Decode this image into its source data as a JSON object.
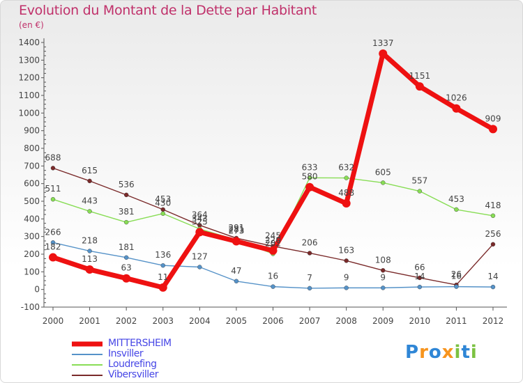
{
  "header": {
    "title": "Evolution du Montant de la Dette par Habitant",
    "subtitle": "(en €)"
  },
  "colors": {
    "axis": "#555555",
    "grid": "#cccccc",
    "label": "#444444"
  },
  "chart_data": {
    "type": "line",
    "title": "Evolution du Montant de la Dette par Habitant",
    "subtitle": "(en €)",
    "xlabel": "",
    "ylabel": "",
    "ylim": [
      -100,
      1400
    ],
    "yticks": [
      "-100",
      "0",
      "100",
      "200",
      "300",
      "400",
      "500",
      "600",
      "700",
      "800",
      "900",
      "1000",
      "1100",
      "1200",
      "1300",
      "1400"
    ],
    "x": [
      "2000",
      "2001",
      "2002",
      "2003",
      "2004",
      "2005",
      "2006",
      "2007",
      "2008",
      "2009",
      "2010",
      "2011",
      "2012"
    ],
    "grid": false,
    "legend": "bottom-left",
    "series": [
      {
        "name": "MITTERSHEIM",
        "color": "#ee1111",
        "width": 7,
        "marker": 6,
        "values": [
          182,
          113,
          63,
          11,
          325,
          273,
          220,
          580,
          488,
          1337,
          1151,
          1026,
          909
        ]
      },
      {
        "name": "Insviller",
        "color": "#5592c8",
        "width": 1.4,
        "marker": 3,
        "values": [
          266,
          218,
          181,
          136,
          127,
          47,
          16,
          7,
          9,
          9,
          14,
          16,
          14
        ]
      },
      {
        "name": "Loudrefing",
        "color": "#88dd55",
        "width": 1.4,
        "marker": 3,
        "values": [
          511,
          443,
          381,
          430,
          343,
          281,
          202,
          633,
          632,
          605,
          557,
          453,
          418
        ]
      },
      {
        "name": "Vibersviller",
        "color": "#7a2a2a",
        "width": 1.4,
        "marker": 3,
        "values": [
          688,
          615,
          536,
          453,
          364,
          291,
          245,
          206,
          163,
          108,
          66,
          26,
          256
        ]
      }
    ],
    "data_labels": [
      {
        "series": 0,
        "index": 0,
        "text": "182"
      },
      {
        "series": 0,
        "index": 1,
        "text": "113"
      },
      {
        "series": 0,
        "index": 2,
        "text": "63"
      },
      {
        "series": 0,
        "index": 3,
        "text": "11"
      },
      {
        "series": 0,
        "index": 4,
        "text": "325"
      },
      {
        "series": 0,
        "index": 5,
        "text": "273"
      },
      {
        "series": 0,
        "index": 6,
        "text": "220"
      },
      {
        "series": 0,
        "index": 7,
        "text": "580"
      },
      {
        "series": 0,
        "index": 8,
        "text": "488"
      },
      {
        "series": 0,
        "index": 9,
        "text": "1337"
      },
      {
        "series": 0,
        "index": 10,
        "text": "1151"
      },
      {
        "series": 0,
        "index": 11,
        "text": "1026"
      },
      {
        "series": 0,
        "index": 12,
        "text": "909"
      },
      {
        "series": 1,
        "index": 0,
        "text": "266"
      },
      {
        "series": 1,
        "index": 1,
        "text": "218"
      },
      {
        "series": 1,
        "index": 2,
        "text": "181"
      },
      {
        "series": 1,
        "index": 3,
        "text": "136"
      },
      {
        "series": 1,
        "index": 4,
        "text": "127"
      },
      {
        "series": 1,
        "index": 5,
        "text": "47"
      },
      {
        "series": 1,
        "index": 6,
        "text": "16"
      },
      {
        "series": 1,
        "index": 7,
        "text": "7"
      },
      {
        "series": 1,
        "index": 8,
        "text": "9"
      },
      {
        "series": 1,
        "index": 9,
        "text": "9"
      },
      {
        "series": 1,
        "index": 10,
        "text": "14"
      },
      {
        "series": 1,
        "index": 11,
        "text": "16"
      },
      {
        "series": 1,
        "index": 12,
        "text": "14"
      },
      {
        "series": 2,
        "index": 0,
        "text": "511"
      },
      {
        "series": 2,
        "index": 1,
        "text": "443"
      },
      {
        "series": 2,
        "index": 2,
        "text": "381"
      },
      {
        "series": 2,
        "index": 3,
        "text": "430"
      },
      {
        "series": 2,
        "index": 4,
        "text": "343"
      },
      {
        "series": 2,
        "index": 5,
        "text": "281"
      },
      {
        "series": 2,
        "index": 6,
        "text": "202"
      },
      {
        "series": 2,
        "index": 7,
        "text": "633"
      },
      {
        "series": 2,
        "index": 8,
        "text": "632"
      },
      {
        "series": 2,
        "index": 9,
        "text": "605"
      },
      {
        "series": 2,
        "index": 10,
        "text": "557"
      },
      {
        "series": 2,
        "index": 11,
        "text": "453"
      },
      {
        "series": 2,
        "index": 12,
        "text": "418"
      },
      {
        "series": 3,
        "index": 0,
        "text": "688"
      },
      {
        "series": 3,
        "index": 1,
        "text": "615"
      },
      {
        "series": 3,
        "index": 2,
        "text": "536"
      },
      {
        "series": 3,
        "index": 3,
        "text": "453"
      },
      {
        "series": 3,
        "index": 4,
        "text": "364"
      },
      {
        "series": 3,
        "index": 5,
        "text": "291"
      },
      {
        "series": 3,
        "index": 6,
        "text": "245"
      },
      {
        "series": 3,
        "index": 7,
        "text": "206"
      },
      {
        "series": 3,
        "index": 8,
        "text": "163"
      },
      {
        "series": 3,
        "index": 9,
        "text": "108"
      },
      {
        "series": 3,
        "index": 10,
        "text": "66"
      },
      {
        "series": 3,
        "index": 11,
        "text": "26"
      },
      {
        "series": 3,
        "index": 12,
        "text": "256"
      }
    ]
  },
  "legend": {
    "items": [
      {
        "label": "MITTERSHEIM",
        "color": "#ee1111"
      },
      {
        "label": "Insviller",
        "color": "#5592c8"
      },
      {
        "label": "Loudrefing",
        "color": "#88dd55"
      },
      {
        "label": "Vibersviller",
        "color": "#7a2a2a"
      }
    ]
  },
  "branding": {
    "logo_letters": [
      "P",
      "r",
      "o",
      "x",
      "i",
      "t",
      "i"
    ],
    "logo_colors": [
      "#2f86d6",
      "#f7941d",
      "#2f86d6",
      "#f7941d",
      "#7cc242",
      "#2f86d6",
      "#7cc242"
    ]
  }
}
